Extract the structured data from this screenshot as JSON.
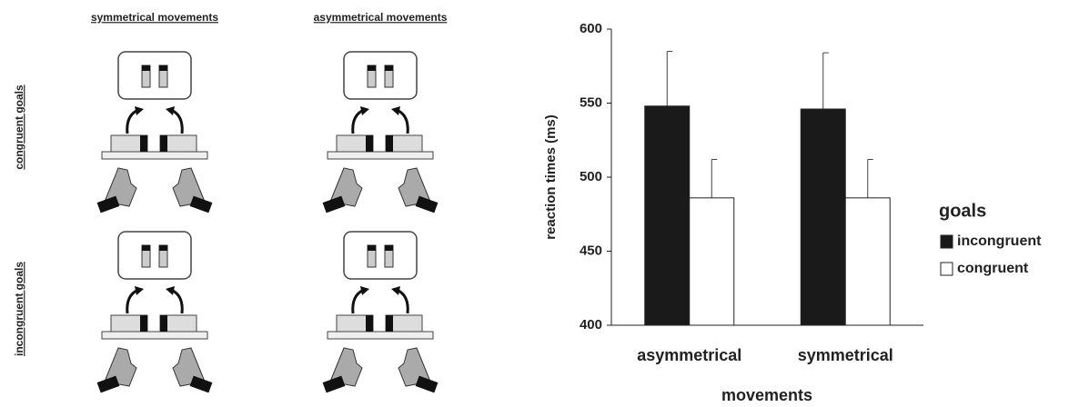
{
  "panel": {
    "column_labels": [
      "symmetrical movements",
      "asymmetrical movements"
    ],
    "row_labels": [
      "congruent goals",
      "incongruent goals"
    ]
  },
  "chart_data": {
    "type": "bar",
    "categories": [
      "asymmetrical",
      "symmetrical"
    ],
    "series": [
      {
        "name": "incongruent",
        "color": "#1a1a1a",
        "values": [
          548,
          546
        ],
        "errors": [
          37,
          38
        ]
      },
      {
        "name": "congruent",
        "color": "#ffffff",
        "values": [
          486,
          486
        ],
        "errors": [
          26,
          26
        ]
      }
    ],
    "y_label": "reaction times (ms)",
    "x_label": "movements",
    "legend_title": "goals",
    "ylim": [
      400,
      600
    ],
    "yticks": [
      400,
      450,
      500,
      550,
      600
    ],
    "grid": false,
    "legend_position": "right"
  }
}
